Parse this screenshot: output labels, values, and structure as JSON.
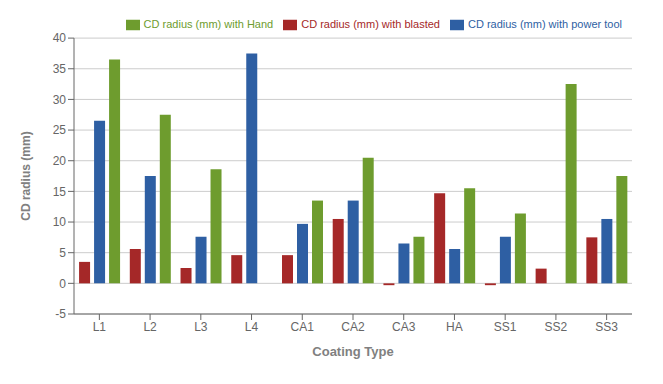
{
  "chart_data": {
    "type": "bar",
    "categories": [
      "L1",
      "L2",
      "L3",
      "L4",
      "CA1",
      "CA2",
      "CA3",
      "HA",
      "SS1",
      "SS2",
      "SS3"
    ],
    "series": [
      {
        "name": "CD radius (mm) with blasted",
        "color": "#A52828",
        "values": [
          3.5,
          5.6,
          2.5,
          4.6,
          4.6,
          10.5,
          -0.3,
          14.7,
          -0.3,
          2.4,
          7.5
        ]
      },
      {
        "name": "CD radius (mm) with power tool",
        "color": "#2E5FA3",
        "values": [
          26.5,
          17.5,
          7.6,
          37.5,
          9.7,
          13.5,
          6.5,
          5.6,
          7.6,
          0.0,
          10.5
        ]
      },
      {
        "name": "CD radius (mm) with Hand",
        "color": "#6E9C2E",
        "values": [
          36.5,
          27.5,
          18.6,
          0.0,
          13.5,
          20.5,
          7.6,
          15.5,
          11.4,
          32.5,
          17.5
        ]
      }
    ],
    "xlabel": "Coating Type",
    "ylabel": "CD radius (mm)",
    "ylim": [
      -5,
      40
    ],
    "yticks": [
      -5,
      0,
      5,
      10,
      15,
      20,
      25,
      30,
      35,
      40
    ],
    "grid": true,
    "legend": "upper right"
  }
}
